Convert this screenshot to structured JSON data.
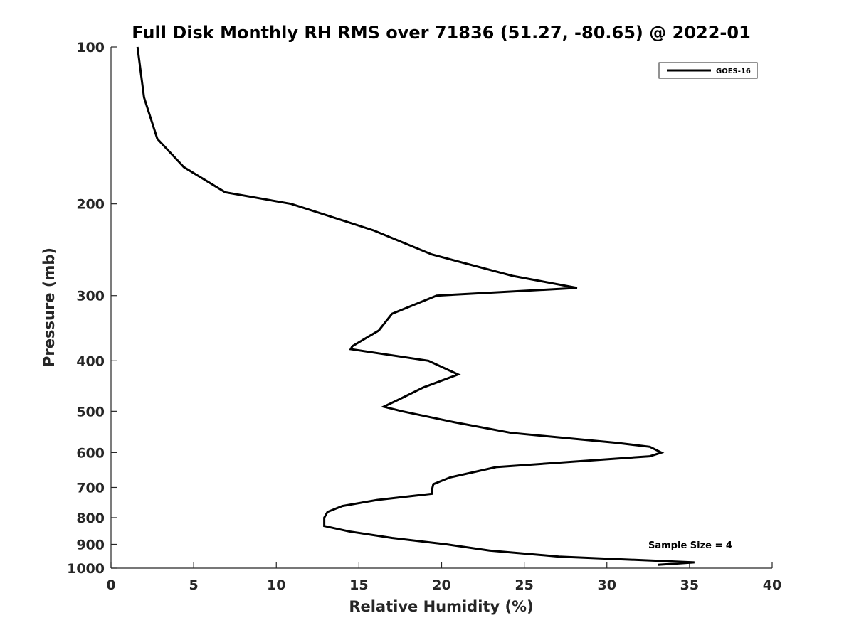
{
  "chart_data": {
    "type": "line",
    "title": "Full Disk Monthly RH RMS over 71836 (51.27, -80.65) @ 2022-01",
    "xlabel": "Relative Humidity (%)",
    "ylabel": "Pressure (mb)",
    "xlim": [
      0,
      40
    ],
    "ylim": [
      100,
      1000
    ],
    "y_scale": "log",
    "y_reversed": true,
    "xticks": [
      0,
      5,
      10,
      15,
      20,
      25,
      30,
      35,
      40
    ],
    "yticks": [
      100,
      200,
      300,
      400,
      500,
      600,
      700,
      800,
      900,
      1000
    ],
    "grid": false,
    "legend": {
      "position": "top-right",
      "entries": [
        "GOES-16"
      ]
    },
    "annotation": "Sample Size = 4",
    "series": [
      {
        "name": "GOES-16",
        "color": "#000000",
        "points": [
          [
            1.6,
            100
          ],
          [
            2.0,
            125
          ],
          [
            2.8,
            150
          ],
          [
            4.4,
            170
          ],
          [
            6.9,
            190
          ],
          [
            10.9,
            200
          ],
          [
            15.9,
            225
          ],
          [
            19.4,
            250
          ],
          [
            24.3,
            275
          ],
          [
            28.2,
            290
          ],
          [
            19.7,
            300
          ],
          [
            17.0,
            325
          ],
          [
            16.2,
            350
          ],
          [
            14.6,
            375
          ],
          [
            14.5,
            380
          ],
          [
            19.2,
            400
          ],
          [
            21.0,
            425
          ],
          [
            18.9,
            450
          ],
          [
            17.4,
            475
          ],
          [
            16.5,
            490
          ],
          [
            17.6,
            500
          ],
          [
            20.8,
            525
          ],
          [
            24.2,
            550
          ],
          [
            30.6,
            575
          ],
          [
            32.6,
            585
          ],
          [
            33.3,
            600
          ],
          [
            32.6,
            610
          ],
          [
            23.3,
            640
          ],
          [
            20.5,
            670
          ],
          [
            19.5,
            690
          ],
          [
            19.4,
            710
          ],
          [
            19.4,
            720
          ],
          [
            16.1,
            740
          ],
          [
            14.0,
            760
          ],
          [
            13.1,
            780
          ],
          [
            12.9,
            800
          ],
          [
            12.9,
            830
          ],
          [
            14.4,
            850
          ],
          [
            17.0,
            875
          ],
          [
            20.3,
            900
          ],
          [
            22.9,
            925
          ],
          [
            27.1,
            950
          ],
          [
            35.3,
            975
          ],
          [
            33.1,
            985
          ]
        ]
      }
    ]
  }
}
